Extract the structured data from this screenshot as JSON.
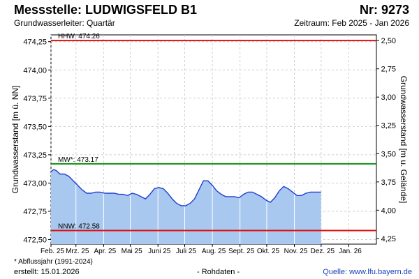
{
  "header": {
    "station": "Messstelle: LUDWIGSFELD B1",
    "number": "Nr: 9273",
    "aquifer": "Grundwasserleiter: Quartär",
    "period": "Zeitraum: Feb 2025 - Jan 2026"
  },
  "footer": {
    "note": "* Abflussjahr (1991-2024)",
    "created": "erstellt:  15.01.2026",
    "raw": "- Rohdaten -",
    "source": "Quelle: www.lfu.bayern.de"
  },
  "chart_data": {
    "type": "area",
    "ylabel": "Grundwasserstand [m ü. NN]",
    "ylabel_right": "Grundwasserstand [m u. Gelände]",
    "ylim": [
      472.46,
      474.31
    ],
    "yticks": [
      472.5,
      472.75,
      473.0,
      473.25,
      473.5,
      473.75,
      474.0,
      474.25
    ],
    "ytick_labels": [
      "472,50",
      "472,75",
      "473,00",
      "473,25",
      "473,50",
      "473,75",
      "474,00",
      "474,25"
    ],
    "right_ticks": [
      {
        "depth": 2.5,
        "label": "2,50"
      },
      {
        "depth": 2.75,
        "label": "2,75"
      },
      {
        "depth": 3.0,
        "label": "3,00"
      },
      {
        "depth": 3.25,
        "label": "3,25"
      },
      {
        "depth": 3.5,
        "label": "3,50"
      },
      {
        "depth": 3.75,
        "label": "3,75"
      },
      {
        "depth": 4.0,
        "label": "4,00"
      },
      {
        "depth": 4.25,
        "label": "4,25"
      }
    ],
    "xlim": [
      "2025-02-01",
      "2026-01-31"
    ],
    "xticks": [
      "2025-02-01",
      "2025-03-01",
      "2025-04-01",
      "2025-05-01",
      "2025-06-01",
      "2025-07-01",
      "2025-08-01",
      "2025-09-01",
      "2025-10-01",
      "2025-11-01",
      "2025-12-01",
      "2026-01-01"
    ],
    "xtick_labels": [
      "Feb. 25",
      "Mrz. 25",
      "Apr. 25",
      "Mai 25",
      "Juni 25",
      "Juli 25",
      "Aug. 25",
      "Sept. 25",
      "Okt. 25",
      "Nov. 25",
      "Dez. 25",
      "Jan. 26"
    ],
    "grid": true,
    "reference_lines": [
      {
        "label": "HHW: 474.26",
        "value": 474.26,
        "color": "#e01010"
      },
      {
        "label": "MW*: 473.17",
        "value": 473.17,
        "color": "#109010"
      },
      {
        "label": "NNW: 472.58",
        "value": 472.58,
        "color": "#e01010"
      }
    ],
    "series": [
      {
        "color": "#1e3fd0",
        "fill": "#a8c8f0",
        "x": [
          "2025-02-01",
          "2025-02-04",
          "2025-02-07",
          "2025-02-11",
          "2025-02-16",
          "2025-02-21",
          "2025-02-26",
          "2025-03-03",
          "2025-03-08",
          "2025-03-13",
          "2025-03-18",
          "2025-03-23",
          "2025-03-28",
          "2025-04-03",
          "2025-04-08",
          "2025-04-13",
          "2025-04-18",
          "2025-04-23",
          "2025-04-28",
          "2025-05-03",
          "2025-05-08",
          "2025-05-13",
          "2025-05-18",
          "2025-05-23",
          "2025-05-28",
          "2025-06-02",
          "2025-06-07",
          "2025-06-12",
          "2025-06-17",
          "2025-06-22",
          "2025-06-27",
          "2025-07-02",
          "2025-07-07",
          "2025-07-12",
          "2025-07-17",
          "2025-07-22",
          "2025-07-27",
          "2025-08-01",
          "2025-08-06",
          "2025-08-11",
          "2025-08-16",
          "2025-08-21",
          "2025-08-26",
          "2025-08-31",
          "2025-09-05",
          "2025-09-10",
          "2025-09-15",
          "2025-09-20",
          "2025-09-25",
          "2025-09-30",
          "2025-10-05",
          "2025-10-10",
          "2025-10-15",
          "2025-10-20",
          "2025-10-25",
          "2025-10-30",
          "2025-11-04",
          "2025-11-09",
          "2025-11-14",
          "2025-11-19",
          "2025-11-24",
          "2025-11-29",
          "2025-12-01"
        ],
        "y": [
          473.1,
          473.12,
          473.11,
          473.08,
          473.08,
          473.06,
          473.02,
          472.98,
          472.94,
          472.91,
          472.91,
          472.92,
          472.92,
          472.91,
          472.91,
          472.91,
          472.9,
          472.9,
          472.89,
          472.91,
          472.9,
          472.88,
          472.86,
          472.9,
          472.95,
          472.96,
          472.95,
          472.91,
          472.86,
          472.82,
          472.8,
          472.8,
          472.82,
          472.86,
          472.94,
          473.02,
          473.02,
          472.98,
          472.93,
          472.9,
          472.88,
          472.88,
          472.88,
          472.87,
          472.9,
          472.92,
          472.92,
          472.9,
          472.88,
          472.85,
          472.83,
          472.87,
          472.93,
          472.97,
          472.95,
          472.92,
          472.89,
          472.89,
          472.91,
          472.92,
          472.92,
          472.92,
          472.92
        ]
      }
    ]
  }
}
